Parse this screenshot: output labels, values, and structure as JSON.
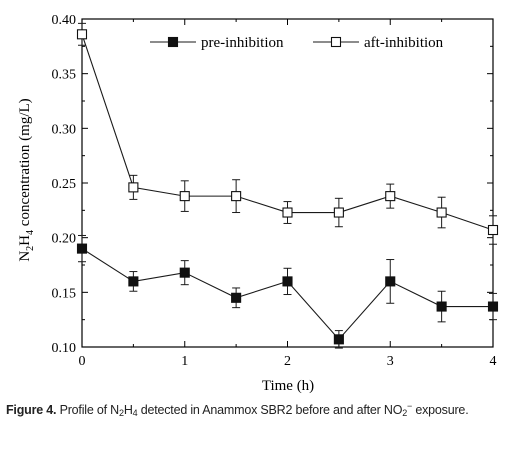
{
  "chart_data": {
    "type": "line",
    "x_label": "Time (h)",
    "y_label": {
      "base": "N",
      "sub1": "2",
      "mid": "H",
      "sub2": "4",
      "rest": " concentration (mg/L)"
    },
    "xlim": [
      0,
      4
    ],
    "ylim": [
      0.1,
      0.4
    ],
    "x_ticks": [
      "0",
      "1",
      "2",
      "3",
      "4"
    ],
    "y_ticks": [
      "0.10",
      "0.15",
      "0.20",
      "0.25",
      "0.30",
      "0.35",
      "0.40"
    ],
    "x": [
      0,
      0.5,
      1,
      1.5,
      2,
      2.5,
      3,
      3.5,
      4
    ],
    "series": [
      {
        "name": "pre-inhibition",
        "marker": "filled-square",
        "values": [
          0.19,
          0.16,
          0.168,
          0.145,
          0.16,
          0.107,
          0.16,
          0.137,
          0.137
        ],
        "errors": [
          0.012,
          0.009,
          0.011,
          0.009,
          0.012,
          0.008,
          0.02,
          0.014,
          0.012
        ]
      },
      {
        "name": "aft-inhibition",
        "marker": "open-square",
        "values": [
          0.386,
          0.246,
          0.238,
          0.238,
          0.223,
          0.223,
          0.238,
          0.223,
          0.207
        ],
        "errors": [
          0.01,
          0.011,
          0.014,
          0.015,
          0.01,
          0.013,
          0.011,
          0.014,
          0.013
        ]
      }
    ],
    "legend_position": "top-right",
    "grid": false
  },
  "caption": {
    "lead": "Figure 4.",
    "part1": " Profile of N",
    "sub1": "2",
    "part2": "H",
    "sub2": "4",
    "part3": " detected in Anammox SBR2 before and after NO",
    "sub3": "2",
    "sup3": "−",
    "part4": " exposure."
  },
  "colors": {
    "axis": "#000000",
    "line": "#1a1a1a",
    "caption": "#222222"
  }
}
